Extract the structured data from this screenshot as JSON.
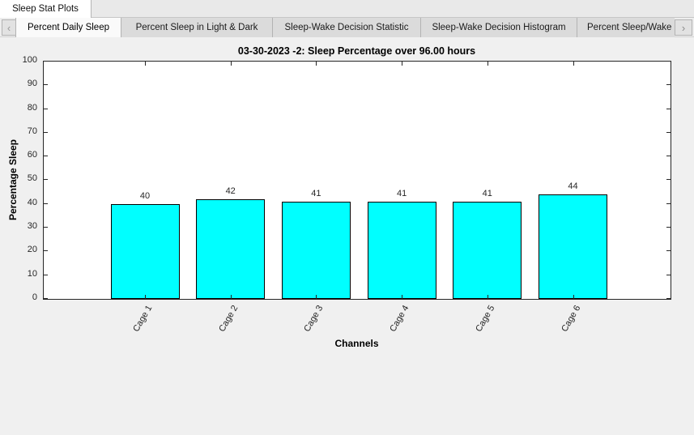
{
  "doc_tabs": [
    {
      "label": "Sleep Stat Plots",
      "active": true
    }
  ],
  "plot_tabs": {
    "left_arrow": "‹",
    "right_arrow": "›",
    "tabs": [
      {
        "label": "Percent Daily Sleep",
        "active": true
      },
      {
        "label": "Percent Sleep in Light & Dark",
        "active": false
      },
      {
        "label": "Sleep-Wake Decision Statistic",
        "active": false
      },
      {
        "label": "Sleep-Wake Decision Histogram",
        "active": false
      },
      {
        "label": "Percent Sleep/Wake",
        "active": false,
        "truncated": true
      }
    ]
  },
  "chart_data": {
    "type": "bar",
    "title": "03-30-2023 -2: Sleep Percentage over 96.00 hours",
    "categories": [
      "Cage 1",
      "Cage 2",
      "Cage 3",
      "Cage 4",
      "Cage 5",
      "Cage 6"
    ],
    "values": [
      40,
      42,
      41,
      41,
      41,
      44
    ],
    "value_labels": [
      "40",
      "42",
      "41",
      "41",
      "41",
      "44"
    ],
    "xlabel": "Channels",
    "ylabel": "Percentage Sleep",
    "ylim": [
      0,
      100
    ],
    "ytick_step": 10,
    "xtick_label_rotation_deg": 60,
    "grid": false,
    "box": true,
    "legend": null,
    "bar_color": "#00ffff",
    "bar_edge_color": "#000000",
    "axis_color": "#262626",
    "plot_background": "#ffffff",
    "figure_background": "#f0f0f0"
  }
}
